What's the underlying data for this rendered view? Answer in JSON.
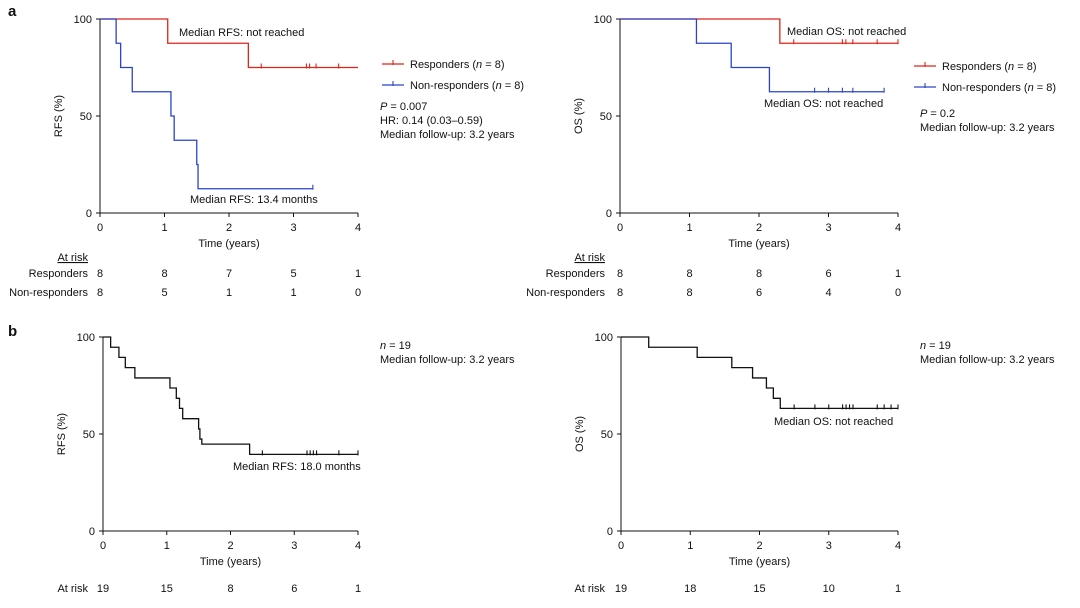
{
  "panel_labels": {
    "a": "a",
    "b": "b"
  },
  "colors": {
    "responders": "#e2231a",
    "non_responders": "#2a44c9",
    "overall": "#111111",
    "axis": "#111111"
  },
  "chart_data": [
    {
      "id": "a_rfs",
      "type": "line",
      "xlabel": "Time (years)",
      "ylabel": "RFS (%)",
      "xlim": [
        0,
        4
      ],
      "ylim": [
        0,
        100
      ],
      "xticks": [
        "0",
        "1",
        "2",
        "3",
        "4"
      ],
      "yticks": [
        "0",
        "50",
        "100"
      ],
      "series": [
        {
          "name": "Responders",
          "n_label": "(n = 8)",
          "color_key": "responders",
          "steps": [
            [
              0,
              100
            ],
            [
              1.05,
              87.5
            ],
            [
              2.3,
              75
            ],
            [
              4,
              75
            ]
          ],
          "censor_times": [
            2.5,
            3.2,
            3.25,
            3.35,
            3.7
          ],
          "median_text": "Median RFS: not reached"
        },
        {
          "name": "Non-responders",
          "n_label": "(n = 8)",
          "color_key": "non_responders",
          "steps": [
            [
              0,
              100
            ],
            [
              0.25,
              87.5
            ],
            [
              0.32,
              75
            ],
            [
              0.5,
              62.5
            ],
            [
              1.1,
              50
            ],
            [
              1.15,
              37.5
            ],
            [
              1.5,
              25
            ],
            [
              1.52,
              12.5
            ],
            [
              3.3,
              12.5
            ]
          ],
          "censor_times": [
            3.3
          ],
          "median_text": "Median RFS: 13.4 months"
        }
      ],
      "stats": [
        "P = 0.007",
        "HR: 0.14 (0.03–0.59)",
        "Median follow-up: 3.2 years"
      ],
      "risk_table": {
        "header": "At risk",
        "rows": [
          {
            "label": "Responders",
            "values": [
              "8",
              "8",
              "7",
              "5",
              "1"
            ]
          },
          {
            "label": "Non-responders",
            "values": [
              "8",
              "5",
              "1",
              "1",
              "0"
            ]
          }
        ]
      }
    },
    {
      "id": "a_os",
      "type": "line",
      "xlabel": "Time (years)",
      "ylabel": "OS (%)",
      "xlim": [
        0,
        4
      ],
      "ylim": [
        0,
        100
      ],
      "xticks": [
        "0",
        "1",
        "2",
        "3",
        "4"
      ],
      "yticks": [
        "0",
        "50",
        "100"
      ],
      "series": [
        {
          "name": "Responders",
          "n_label": "(n = 8)",
          "color_key": "responders",
          "steps": [
            [
              0,
              100
            ],
            [
              2.3,
              87.5
            ],
            [
              4,
              87.5
            ]
          ],
          "censor_times": [
            2.5,
            3.2,
            3.25,
            3.35,
            3.7,
            4.0
          ],
          "median_text": "Median OS: not reached"
        },
        {
          "name": "Non-responders",
          "n_label": "(n = 8)",
          "color_key": "non_responders",
          "steps": [
            [
              0,
              100
            ],
            [
              1.1,
              87.5
            ],
            [
              1.6,
              75
            ],
            [
              2.15,
              62.5
            ],
            [
              3.8,
              62.5
            ]
          ],
          "censor_times": [
            2.8,
            3.0,
            3.2,
            3.35,
            3.8
          ],
          "median_text": "Median OS: not reached"
        }
      ],
      "stats": [
        "P = 0.2",
        "Median follow-up: 3.2 years"
      ],
      "risk_table": {
        "header": "At risk",
        "rows": [
          {
            "label": "Responders",
            "values": [
              "8",
              "8",
              "8",
              "6",
              "1"
            ]
          },
          {
            "label": "Non-responders",
            "values": [
              "8",
              "8",
              "6",
              "4",
              "0"
            ]
          }
        ]
      }
    },
    {
      "id": "b_rfs",
      "type": "line",
      "xlabel": "Time (years)",
      "ylabel": "RFS (%)",
      "xlim": [
        0,
        4
      ],
      "ylim": [
        0,
        100
      ],
      "xticks": [
        "0",
        "1",
        "2",
        "3",
        "4"
      ],
      "yticks": [
        "0",
        "50",
        "100"
      ],
      "series": [
        {
          "name": "",
          "color_key": "overall",
          "steps": [
            [
              0,
              100
            ],
            [
              0.12,
              94.7
            ],
            [
              0.25,
              89.5
            ],
            [
              0.35,
              84.2
            ],
            [
              0.5,
              78.9
            ],
            [
              1.05,
              73.7
            ],
            [
              1.15,
              68.4
            ],
            [
              1.2,
              63.2
            ],
            [
              1.25,
              57.9
            ],
            [
              1.5,
              52.6
            ],
            [
              1.52,
              47.4
            ],
            [
              1.55,
              44.8
            ],
            [
              2.3,
              39.5
            ],
            [
              4,
              39.5
            ]
          ],
          "censor_times": [
            2.5,
            3.2,
            3.25,
            3.3,
            3.35,
            3.7,
            4.0
          ],
          "median_text": "Median RFS: 18.0 months"
        }
      ],
      "stats": [
        "n = 19",
        "Median follow-up: 3.2 years"
      ],
      "risk_table": {
        "header": "At risk",
        "rows": [
          {
            "label": "",
            "values": [
              "19",
              "15",
              "8",
              "6",
              "1"
            ]
          }
        ]
      }
    },
    {
      "id": "b_os",
      "type": "line",
      "xlabel": "Time (years)",
      "ylabel": "OS (%)",
      "xlim": [
        0,
        4
      ],
      "ylim": [
        0,
        100
      ],
      "xticks": [
        "0",
        "1",
        "2",
        "3",
        "4"
      ],
      "yticks": [
        "0",
        "50",
        "100"
      ],
      "series": [
        {
          "name": "",
          "color_key": "overall",
          "steps": [
            [
              0,
              100
            ],
            [
              0.4,
              94.7
            ],
            [
              1.1,
              89.5
            ],
            [
              1.6,
              84.2
            ],
            [
              1.9,
              78.9
            ],
            [
              2.1,
              73.7
            ],
            [
              2.2,
              68.4
            ],
            [
              2.3,
              63.2
            ],
            [
              4,
              63.2
            ]
          ],
          "censor_times": [
            2.5,
            2.8,
            3.0,
            3.2,
            3.25,
            3.3,
            3.35,
            3.7,
            3.8,
            3.9,
            4.0
          ],
          "median_text": "Median OS: not reached"
        }
      ],
      "stats": [
        "n = 19",
        "Median follow-up: 3.2 years"
      ],
      "risk_table": {
        "header": "At risk",
        "rows": [
          {
            "label": "",
            "values": [
              "19",
              "18",
              "15",
              "10",
              "1"
            ]
          }
        ]
      }
    }
  ]
}
